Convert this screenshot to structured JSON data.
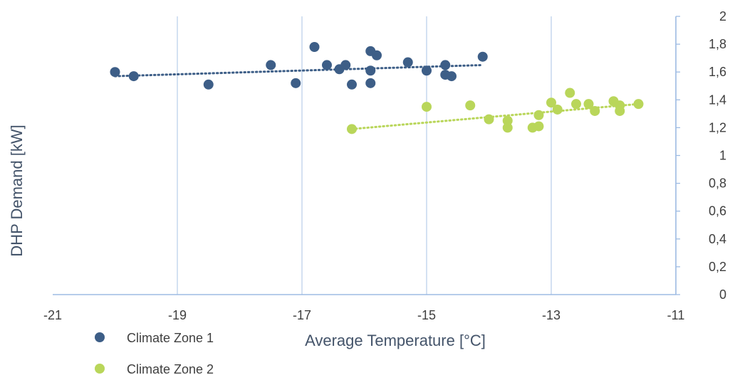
{
  "chart_data": {
    "type": "scatter",
    "xlabel": "Average Temperature [°C]",
    "ylabel": "DHP Demand [kW]",
    "xlim": [
      -21,
      -11
    ],
    "ylim": [
      0,
      2
    ],
    "x_ticks": [
      "-21",
      "-19",
      "-17",
      "-15",
      "-13",
      "-11"
    ],
    "y_ticks": [
      "0",
      "0,2",
      "0,4",
      "0,6",
      "0,8",
      "1",
      "1,2",
      "1,4",
      "1,6",
      "1,8",
      "2"
    ],
    "x_tick_values": [
      -21,
      -19,
      -17,
      -15,
      -13,
      -11
    ],
    "y_tick_values": [
      0,
      0.2,
      0.4,
      0.6,
      0.8,
      1.0,
      1.2,
      1.4,
      1.6,
      1.8,
      2.0
    ],
    "grid": "vertical",
    "legend": "bottom-left",
    "colors": {
      "zone1": "#3d5e87",
      "zone2": "#b9d65a",
      "grid": "#bdd1ec",
      "axis": "#9dbbe3"
    },
    "series": [
      {
        "name": "Climate Zone 1",
        "color": "#3d5e87",
        "trendline": {
          "x": [
            -20.0,
            -14.1
          ],
          "y": [
            1.57,
            1.65
          ]
        },
        "points": [
          [
            -20.0,
            1.6
          ],
          [
            -19.7,
            1.57
          ],
          [
            -18.5,
            1.51
          ],
          [
            -17.5,
            1.65
          ],
          [
            -17.1,
            1.52
          ],
          [
            -16.8,
            1.78
          ],
          [
            -16.6,
            1.65
          ],
          [
            -16.4,
            1.62
          ],
          [
            -16.3,
            1.65
          ],
          [
            -16.2,
            1.51
          ],
          [
            -15.9,
            1.75
          ],
          [
            -15.9,
            1.61
          ],
          [
            -15.9,
            1.52
          ],
          [
            -15.8,
            1.72
          ],
          [
            -15.3,
            1.67
          ],
          [
            -15.0,
            1.61
          ],
          [
            -14.7,
            1.65
          ],
          [
            -14.7,
            1.58
          ],
          [
            -14.6,
            1.57
          ],
          [
            -14.1,
            1.71
          ]
        ]
      },
      {
        "name": "Climate Zone 2",
        "color": "#b9d65a",
        "trendline": {
          "x": [
            -16.2,
            -11.6
          ],
          "y": [
            1.19,
            1.37
          ]
        },
        "points": [
          [
            -16.2,
            1.19
          ],
          [
            -15.0,
            1.35
          ],
          [
            -14.3,
            1.36
          ],
          [
            -14.0,
            1.26
          ],
          [
            -13.7,
            1.25
          ],
          [
            -13.7,
            1.2
          ],
          [
            -13.3,
            1.2
          ],
          [
            -13.2,
            1.21
          ],
          [
            -13.2,
            1.29
          ],
          [
            -13.0,
            1.38
          ],
          [
            -12.9,
            1.33
          ],
          [
            -12.7,
            1.45
          ],
          [
            -12.6,
            1.37
          ],
          [
            -12.4,
            1.37
          ],
          [
            -12.3,
            1.32
          ],
          [
            -12.0,
            1.39
          ],
          [
            -11.9,
            1.36
          ],
          [
            -11.9,
            1.32
          ],
          [
            -11.6,
            1.37
          ]
        ]
      }
    ]
  }
}
